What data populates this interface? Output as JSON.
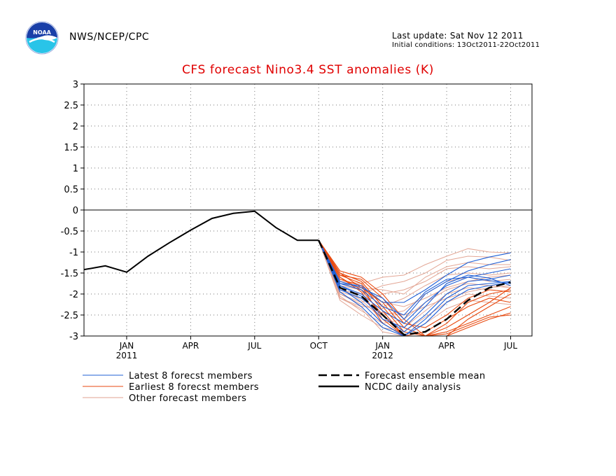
{
  "header": {
    "agency": "NWS/NCEP/CPC",
    "last_update": "Last update: Sat Nov 12 2011",
    "initial_conditions": "Initial conditions: 13Oct2011-22Oct2011",
    "logo_text": "NOAA"
  },
  "chart_data": {
    "type": "line",
    "title": "CFS forecast Nino3.4 SST anomalies (K)",
    "xlabel": "",
    "ylabel": "",
    "ylim": [
      -3,
      3
    ],
    "yticks": [
      "3",
      "2.5",
      "2",
      "1.5",
      "1",
      "0.5",
      "0",
      "-0.5",
      "-1",
      "-1.5",
      "-2",
      "-2.5",
      "-3"
    ],
    "xticks": [
      {
        "label": "JAN",
        "sub": "2011",
        "t": 2
      },
      {
        "label": "APR",
        "sub": "",
        "t": 5
      },
      {
        "label": "JUL",
        "sub": "",
        "t": 8
      },
      {
        "label": "OCT",
        "sub": "",
        "t": 11
      },
      {
        "label": "JAN",
        "sub": "2012",
        "t": 14
      },
      {
        "label": "APR",
        "sub": "",
        "t": 17
      },
      {
        "label": "JUL",
        "sub": "",
        "t": 20
      }
    ],
    "xlim": [
      0,
      21
    ],
    "grid": true,
    "legend": [
      {
        "label": "Latest 8 forecst members",
        "color": "#1f5fd6",
        "style": "thin"
      },
      {
        "label": "Earliest 8 forecst members",
        "color": "#e84a10",
        "style": "thin"
      },
      {
        "label": "Other forecast members",
        "color": "#e0a090",
        "style": "thin"
      },
      {
        "label": "Forecast ensemble mean",
        "color": "#000000",
        "style": "dashed"
      },
      {
        "label": "NCDC daily analysis",
        "color": "#000000",
        "style": "solid"
      }
    ],
    "series": [
      {
        "name": "NCDC daily analysis",
        "x": [
          0,
          1,
          2,
          3,
          4,
          5,
          6,
          7,
          8,
          9,
          10,
          11
        ],
        "y": [
          -1.42,
          -1.33,
          -1.48,
          -1.1,
          -0.78,
          -0.48,
          -0.2,
          -0.08,
          -0.03,
          -0.42,
          -0.72,
          -0.72
        ]
      },
      {
        "name": "Forecast ensemble mean",
        "x": [
          11,
          12,
          13,
          14,
          15,
          16,
          17,
          18,
          19,
          20
        ],
        "y": [
          -0.72,
          -1.85,
          -2.05,
          -2.5,
          -2.97,
          -2.9,
          -2.6,
          -2.15,
          -1.85,
          -1.72
        ]
      },
      {
        "name": "Latest 8 forecst members",
        "members": [
          {
            "x": [
              11,
              12,
              13,
              14,
              15,
              16,
              17,
              18,
              19,
              20
            ],
            "y": [
              -0.72,
              -1.75,
              -1.8,
              -2.2,
              -2.2,
              -1.9,
              -1.55,
              -1.25,
              -1.12,
              -1.02
            ]
          },
          {
            "x": [
              11,
              12,
              13,
              14,
              15,
              16,
              17,
              18,
              19,
              20
            ],
            "y": [
              -0.72,
              -1.7,
              -1.85,
              -2.1,
              -2.6,
              -2.0,
              -1.7,
              -1.45,
              -1.3,
              -1.18
            ]
          },
          {
            "x": [
              11,
              12,
              13,
              14,
              15,
              16,
              17,
              18,
              19,
              20
            ],
            "y": [
              -0.72,
              -1.8,
              -2.0,
              -2.4,
              -2.7,
              -2.2,
              -1.8,
              -1.6,
              -1.5,
              -1.4
            ]
          },
          {
            "x": [
              11,
              12,
              13,
              14,
              15,
              16,
              17,
              18,
              19,
              20
            ],
            "y": [
              -0.72,
              -1.9,
              -2.1,
              -2.5,
              -2.9,
              -2.5,
              -2.0,
              -1.7,
              -1.65,
              -1.55
            ]
          },
          {
            "x": [
              11,
              12,
              13,
              14,
              15,
              16,
              17,
              18,
              19,
              20
            ],
            "y": [
              -0.72,
              -1.85,
              -2.2,
              -2.7,
              -3.0,
              -2.6,
              -2.1,
              -1.8,
              -1.75,
              -1.7
            ]
          },
          {
            "x": [
              11,
              12,
              13,
              14,
              15,
              16,
              17,
              18,
              19,
              20
            ],
            "y": [
              -0.72,
              -1.75,
              -1.9,
              -2.3,
              -2.5,
              -1.95,
              -1.65,
              -1.6,
              -1.68,
              -1.75
            ]
          },
          {
            "x": [
              11,
              12,
              13,
              14,
              15,
              16,
              17,
              18,
              19,
              20
            ],
            "y": [
              -0.72,
              -1.8,
              -2.05,
              -2.6,
              -2.8,
              -2.3,
              -1.75,
              -1.55,
              -1.62,
              -1.8
            ]
          },
          {
            "x": [
              11,
              12,
              13,
              14,
              15,
              16,
              17,
              18,
              19,
              20
            ],
            "y": [
              -0.72,
              -1.95,
              -2.3,
              -2.8,
              -3.0,
              -2.7,
              -2.2,
              -1.9,
              -1.8,
              -1.72
            ]
          }
        ]
      },
      {
        "name": "Earliest 8 forecst members",
        "members": [
          {
            "x": [
              11,
              12,
              13,
              14,
              15,
              16,
              17,
              18,
              19,
              20
            ],
            "y": [
              -0.72,
              -1.45,
              -1.6,
              -2.0,
              -2.6,
              -3.0,
              -2.7,
              -2.2,
              -2.0,
              -1.9
            ]
          },
          {
            "x": [
              11,
              12,
              13,
              14,
              15,
              16,
              17,
              18,
              19,
              20
            ],
            "y": [
              -0.72,
              -1.5,
              -1.7,
              -2.3,
              -2.9,
              -3.0,
              -3.0,
              -2.6,
              -2.3,
              -2.0
            ]
          },
          {
            "x": [
              11,
              12,
              13,
              14,
              15,
              16,
              17,
              18,
              19,
              20
            ],
            "y": [
              -0.72,
              -1.55,
              -1.75,
              -2.4,
              -3.0,
              -3.0,
              -2.8,
              -2.5,
              -2.2,
              -1.85
            ]
          },
          {
            "x": [
              11,
              12,
              13,
              14,
              15,
              16,
              17,
              18,
              19,
              20
            ],
            "y": [
              -0.72,
              -1.6,
              -1.9,
              -2.5,
              -3.0,
              -3.0,
              -3.0,
              -2.8,
              -2.6,
              -2.45
            ]
          },
          {
            "x": [
              11,
              12,
              13,
              14,
              15,
              16,
              17,
              18,
              19,
              20
            ],
            "y": [
              -0.72,
              -1.65,
              -1.8,
              -2.6,
              -3.0,
              -2.9,
              -2.6,
              -2.3,
              -2.1,
              -2.2
            ]
          },
          {
            "x": [
              11,
              12,
              13,
              14,
              15,
              16,
              17,
              18,
              19,
              20
            ],
            "y": [
              -0.72,
              -1.5,
              -1.85,
              -2.2,
              -2.8,
              -3.0,
              -2.9,
              -2.7,
              -2.5,
              -2.3
            ]
          },
          {
            "x": [
              11,
              12,
              13,
              14,
              15,
              16,
              17,
              18,
              19,
              20
            ],
            "y": [
              -0.72,
              -1.55,
              -1.65,
              -2.1,
              -2.7,
              -2.8,
              -2.5,
              -2.1,
              -1.9,
              -1.95
            ]
          },
          {
            "x": [
              11,
              12,
              13,
              14,
              15,
              16,
              17,
              18,
              19,
              20
            ],
            "y": [
              -0.72,
              -1.6,
              -1.95,
              -2.7,
              -3.0,
              -3.0,
              -2.95,
              -2.75,
              -2.55,
              -2.5
            ]
          }
        ]
      },
      {
        "name": "Other forecast members",
        "members": [
          {
            "x": [
              11,
              12,
              13,
              14,
              15,
              16,
              17,
              18,
              19,
              20
            ],
            "y": [
              -0.72,
              -1.7,
              -1.75,
              -1.6,
              -1.55,
              -1.3,
              -1.1,
              -0.92,
              -1.0,
              -1.02
            ]
          },
          {
            "x": [
              11,
              12,
              13,
              14,
              15,
              16,
              17,
              18,
              19,
              20
            ],
            "y": [
              -0.72,
              -1.9,
              -2.0,
              -1.8,
              -1.7,
              -1.5,
              -1.2,
              -1.1,
              -1.12,
              -1.2
            ]
          },
          {
            "x": [
              11,
              12,
              13,
              14,
              15,
              16,
              17,
              18,
              19,
              20
            ],
            "y": [
              -0.72,
              -2.0,
              -2.2,
              -2.0,
              -1.9,
              -1.7,
              -1.4,
              -1.35,
              -1.4,
              -1.35
            ]
          },
          {
            "x": [
              11,
              12,
              13,
              14,
              15,
              16,
              17,
              18,
              19,
              20
            ],
            "y": [
              -0.72,
              -2.1,
              -2.3,
              -2.3,
              -2.1,
              -1.8,
              -1.55,
              -1.5,
              -1.55,
              -1.5
            ]
          },
          {
            "x": [
              11,
              12,
              13,
              14,
              15,
              16,
              17,
              18,
              19,
              20
            ],
            "y": [
              -0.72,
              -1.95,
              -2.1,
              -2.5,
              -2.4,
              -2.0,
              -1.7,
              -1.6,
              -1.7,
              -1.65
            ]
          },
          {
            "x": [
              11,
              12,
              13,
              14,
              15,
              16,
              17,
              18,
              19,
              20
            ],
            "y": [
              -0.72,
              -2.05,
              -2.4,
              -2.7,
              -2.6,
              -2.2,
              -1.9,
              -1.75,
              -1.8,
              -1.85
            ]
          },
          {
            "x": [
              11,
              12,
              13,
              14,
              15,
              16,
              17,
              18,
              19,
              20
            ],
            "y": [
              -0.72,
              -1.85,
              -2.15,
              -2.6,
              -2.8,
              -2.4,
              -2.0,
              -1.85,
              -1.9,
              -1.95
            ]
          },
          {
            "x": [
              11,
              12,
              13,
              14,
              15,
              16,
              17,
              18,
              19,
              20
            ],
            "y": [
              -0.72,
              -2.15,
              -2.5,
              -2.8,
              -2.9,
              -2.55,
              -2.2,
              -2.0,
              -2.05,
              -2.1
            ]
          },
          {
            "x": [
              11,
              12,
              13,
              14,
              15,
              16,
              17,
              18,
              19,
              20
            ],
            "y": [
              -0.72,
              -1.8,
              -1.9,
              -2.2,
              -2.3,
              -2.1,
              -1.85,
              -1.7,
              -1.6,
              -1.55
            ]
          },
          {
            "x": [
              11,
              12,
              13,
              14,
              15,
              16,
              17,
              18,
              19,
              20
            ],
            "y": [
              -0.72,
              -2.0,
              -2.25,
              -2.45,
              -2.5,
              -2.3,
              -2.1,
              -1.95,
              -1.85,
              -1.8
            ]
          },
          {
            "x": [
              11,
              12,
              13,
              14,
              15,
              16,
              17,
              18,
              19,
              20
            ],
            "y": [
              -0.72,
              -2.1,
              -2.35,
              -2.9,
              -3.0,
              -2.7,
              -2.35,
              -2.15,
              -2.2,
              -2.25
            ]
          },
          {
            "x": [
              11,
              12,
              13,
              14,
              15,
              16,
              17,
              18,
              19,
              20
            ],
            "y": [
              -0.72,
              -1.75,
              -1.85,
              -1.9,
              -2.0,
              -1.6,
              -1.35,
              -1.25,
              -1.3,
              -1.3
            ]
          }
        ]
      }
    ]
  }
}
